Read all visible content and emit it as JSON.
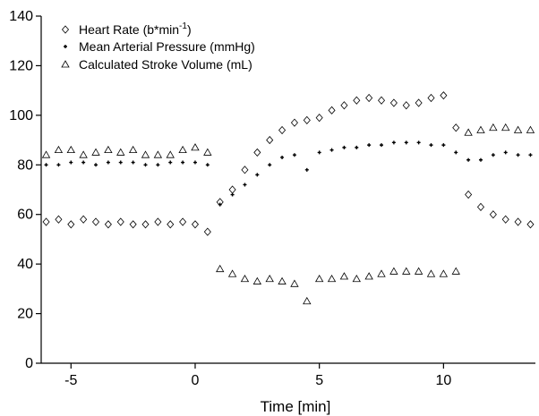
{
  "chart_data": {
    "type": "scatter",
    "xlabel": "Time [min]",
    "ylabel": "",
    "xlim": [
      -6.2,
      13.7
    ],
    "ylim": [
      0,
      140
    ],
    "x_ticks": [
      -5,
      0,
      5,
      10
    ],
    "x_tick_labels": [
      "-5",
      "0",
      "5",
      "10"
    ],
    "y_ticks": [
      0,
      20,
      40,
      60,
      80,
      100,
      120,
      140
    ],
    "y_tick_labels": [
      "0",
      "20",
      "40",
      "60",
      "80",
      "100",
      "120",
      "140"
    ],
    "grid": false,
    "legend_position": "top-left",
    "series": [
      {
        "key": "hr",
        "legend_prefix": "Heart Rate (b*min",
        "legend_superscript": "-1",
        "legend_suffix": ")",
        "marker": "diamond",
        "color": "#000000",
        "points": [
          [
            -6.0,
            57
          ],
          [
            -5.5,
            58
          ],
          [
            -5.0,
            56
          ],
          [
            -4.5,
            58
          ],
          [
            -4.0,
            57
          ],
          [
            -3.5,
            56
          ],
          [
            -3.0,
            57
          ],
          [
            -2.5,
            56
          ],
          [
            -2.0,
            56
          ],
          [
            -1.5,
            57
          ],
          [
            -1.0,
            56
          ],
          [
            -0.5,
            57
          ],
          [
            0.0,
            56
          ],
          [
            0.5,
            53
          ],
          [
            1.0,
            65
          ],
          [
            1.5,
            70
          ],
          [
            2.0,
            78
          ],
          [
            2.5,
            85
          ],
          [
            3.0,
            90
          ],
          [
            3.5,
            94
          ],
          [
            4.0,
            97
          ],
          [
            4.5,
            98
          ],
          [
            5.0,
            99
          ],
          [
            5.5,
            102
          ],
          [
            6.0,
            104
          ],
          [
            6.5,
            106
          ],
          [
            7.0,
            107
          ],
          [
            7.5,
            106
          ],
          [
            8.0,
            105
          ],
          [
            8.5,
            104
          ],
          [
            9.0,
            105
          ],
          [
            9.5,
            107
          ],
          [
            10.0,
            108
          ],
          [
            10.5,
            95
          ],
          [
            11.0,
            68
          ],
          [
            11.5,
            63
          ],
          [
            12.0,
            60
          ],
          [
            12.5,
            58
          ],
          [
            13.0,
            57
          ],
          [
            13.5,
            56
          ]
        ]
      },
      {
        "key": "map",
        "legend_label": "Mean Arterial Pressure (mmHg)",
        "marker": "plus",
        "color": "#000000",
        "points": [
          [
            -6.0,
            80
          ],
          [
            -5.5,
            80
          ],
          [
            -5.0,
            81
          ],
          [
            -4.5,
            81
          ],
          [
            -4.0,
            80
          ],
          [
            -3.5,
            81
          ],
          [
            -3.0,
            81
          ],
          [
            -2.5,
            81
          ],
          [
            -2.0,
            80
          ],
          [
            -1.5,
            80
          ],
          [
            -1.0,
            81
          ],
          [
            -0.5,
            81
          ],
          [
            0.0,
            81
          ],
          [
            0.5,
            80
          ],
          [
            1.0,
            64
          ],
          [
            1.5,
            68
          ],
          [
            2.0,
            72
          ],
          [
            2.5,
            76
          ],
          [
            3.0,
            80
          ],
          [
            3.5,
            83
          ],
          [
            4.0,
            84
          ],
          [
            4.5,
            78
          ],
          [
            5.0,
            85
          ],
          [
            5.5,
            86
          ],
          [
            6.0,
            87
          ],
          [
            6.5,
            87
          ],
          [
            7.0,
            88
          ],
          [
            7.5,
            88
          ],
          [
            8.0,
            89
          ],
          [
            8.5,
            89
          ],
          [
            9.0,
            89
          ],
          [
            9.5,
            88
          ],
          [
            10.0,
            88
          ],
          [
            10.5,
            85
          ],
          [
            11.0,
            82
          ],
          [
            11.5,
            82
          ],
          [
            12.0,
            84
          ],
          [
            12.5,
            85
          ],
          [
            13.0,
            84
          ],
          [
            13.5,
            84
          ]
        ]
      },
      {
        "key": "sv",
        "legend_label": "Calculated Stroke Volume (mL)",
        "marker": "triangle",
        "color": "#000000",
        "points": [
          [
            -6.0,
            84
          ],
          [
            -5.5,
            86
          ],
          [
            -5.0,
            86
          ],
          [
            -4.5,
            84
          ],
          [
            -4.0,
            85
          ],
          [
            -3.5,
            86
          ],
          [
            -3.0,
            85
          ],
          [
            -2.5,
            86
          ],
          [
            -2.0,
            84
          ],
          [
            -1.5,
            84
          ],
          [
            -1.0,
            84
          ],
          [
            -0.5,
            86
          ],
          [
            0.0,
            87
          ],
          [
            0.5,
            85
          ],
          [
            1.0,
            38
          ],
          [
            1.5,
            36
          ],
          [
            2.0,
            34
          ],
          [
            2.5,
            33
          ],
          [
            3.0,
            34
          ],
          [
            3.5,
            33
          ],
          [
            4.0,
            32
          ],
          [
            4.5,
            25
          ],
          [
            5.0,
            34
          ],
          [
            5.5,
            34
          ],
          [
            6.0,
            35
          ],
          [
            6.5,
            34
          ],
          [
            7.0,
            35
          ],
          [
            7.5,
            36
          ],
          [
            8.0,
            37
          ],
          [
            8.5,
            37
          ],
          [
            9.0,
            37
          ],
          [
            9.5,
            36
          ],
          [
            10.0,
            36
          ],
          [
            10.5,
            37
          ],
          [
            11.0,
            93
          ],
          [
            11.5,
            94
          ],
          [
            12.0,
            95
          ],
          [
            12.5,
            95
          ],
          [
            13.0,
            94
          ],
          [
            13.5,
            94
          ]
        ]
      }
    ]
  }
}
